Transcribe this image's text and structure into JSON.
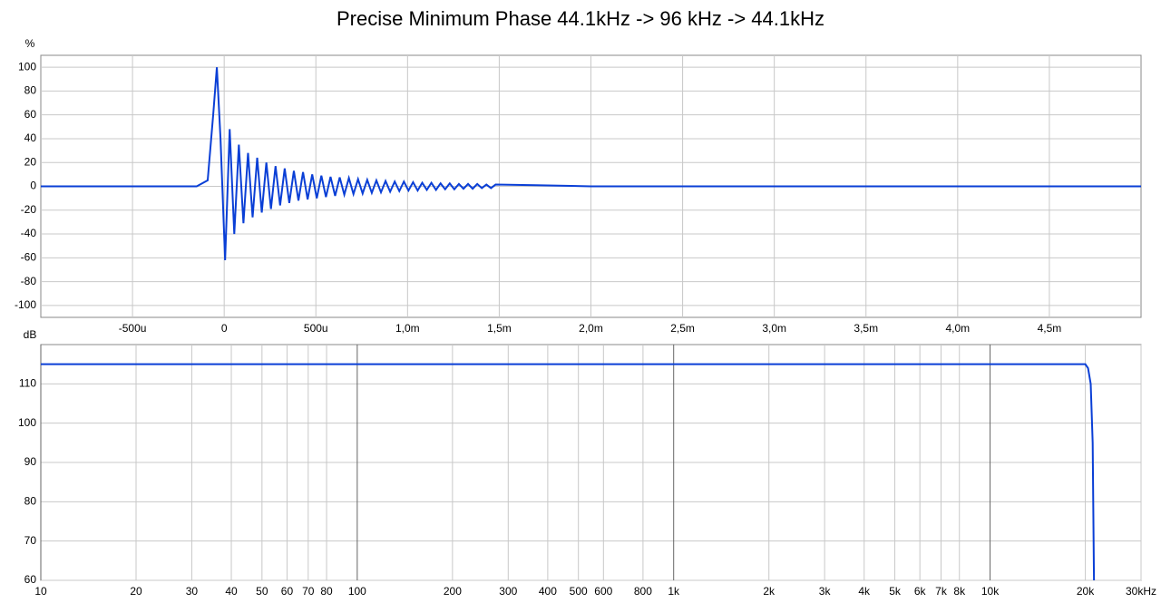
{
  "title": "Precise Minimum Phase 44.1kHz -> 96 kHz -> 44.1kHz",
  "chart_data": [
    {
      "type": "line",
      "ylabel": "%",
      "color": "#0a3fd6",
      "grid": true,
      "xscale": "linear",
      "xlim": [
        -0.001,
        0.005
      ],
      "ylim": [
        -110,
        110
      ],
      "xticks": [
        {
          "value": -0.0005,
          "label": "-500u"
        },
        0,
        {
          "value": 0.0005,
          "label": "500u"
        },
        {
          "value": 0.001,
          "label": "1,0m"
        },
        {
          "value": 0.0015,
          "label": "1,5m"
        },
        {
          "value": 0.002,
          "label": "2,0m"
        },
        {
          "value": 0.0025,
          "label": "2,5m"
        },
        {
          "value": 0.003,
          "label": "3,0m"
        },
        {
          "value": 0.0035,
          "label": "3,5m"
        },
        {
          "value": 0.004,
          "label": "4,0m"
        },
        {
          "value": 0.0045,
          "label": "4,5m"
        }
      ],
      "yticks": [
        -100,
        -80,
        -60,
        -40,
        -20,
        0,
        20,
        40,
        60,
        80,
        100
      ],
      "x": [
        -0.001,
        -0.00015,
        -9e-05,
        -6e-05,
        -4e-05,
        -2e-05,
        5e-06,
        3e-05,
        5.5e-05,
        8e-05,
        0.000105,
        0.00013,
        0.000155,
        0.00018,
        0.000205,
        0.00023,
        0.000255,
        0.00028,
        0.000305,
        0.00033,
        0.000355,
        0.00038,
        0.000405,
        0.00043,
        0.000455,
        0.00048,
        0.000505,
        0.00053,
        0.000555,
        0.00058,
        0.000605,
        0.00063,
        0.000655,
        0.00068,
        0.000705,
        0.00073,
        0.000755,
        0.00078,
        0.000805,
        0.00083,
        0.000855,
        0.00088,
        0.000905,
        0.00093,
        0.000955,
        0.00098,
        0.001005,
        0.00103,
        0.001055,
        0.00108,
        0.001105,
        0.00113,
        0.001155,
        0.00118,
        0.001205,
        0.00123,
        0.001255,
        0.00128,
        0.001305,
        0.00133,
        0.001355,
        0.00138,
        0.001405,
        0.00143,
        0.001455,
        0.00148,
        0.0017,
        0.002,
        0.005
      ],
      "values": [
        0,
        0,
        5,
        60,
        100,
        40,
        -62,
        48,
        -40,
        35,
        -31,
        28,
        -26,
        24,
        -22,
        20,
        -19,
        17,
        -16,
        15,
        -14,
        13,
        -12,
        12,
        -11,
        10,
        -10,
        9,
        -9,
        8,
        -8,
        7.5,
        -7,
        7,
        -6.5,
        6,
        -6,
        5.5,
        -5.5,
        5,
        -5,
        4.5,
        -4.5,
        4,
        -4,
        4,
        -3.5,
        3.5,
        -3.5,
        3,
        -3,
        3,
        -3,
        2.5,
        -2.5,
        2.5,
        -2.5,
        2,
        -2,
        2,
        -2,
        2,
        -1.5,
        1.5,
        -1.5,
        1.5,
        1,
        0,
        0
      ]
    },
    {
      "type": "line",
      "ylabel": "dB",
      "color": "#0a3fd6",
      "grid": true,
      "xscale": "log",
      "xlim": [
        10,
        30000
      ],
      "ylim": [
        60,
        120
      ],
      "xticks": [
        10,
        20,
        30,
        40,
        50,
        60,
        70,
        80,
        100,
        200,
        300,
        400,
        500,
        600,
        800,
        {
          "value": 1000,
          "label": "1k"
        },
        {
          "value": 2000,
          "label": "2k"
        },
        {
          "value": 3000,
          "label": "3k"
        },
        {
          "value": 4000,
          "label": "4k"
        },
        {
          "value": 5000,
          "label": "5k"
        },
        {
          "value": 6000,
          "label": "6k"
        },
        {
          "value": 7000,
          "label": "7k"
        },
        {
          "value": 8000,
          "label": "8k"
        },
        {
          "value": 10000,
          "label": "10k"
        },
        {
          "value": 20000,
          "label": "20k"
        },
        {
          "value": 30000,
          "label": "30kHz"
        }
      ],
      "yticks": [
        60,
        70,
        80,
        90,
        100,
        110
      ],
      "x": [
        10,
        20000,
        20400,
        20800,
        21100,
        21300
      ],
      "values": [
        115,
        115,
        114,
        110,
        95,
        60
      ]
    }
  ]
}
